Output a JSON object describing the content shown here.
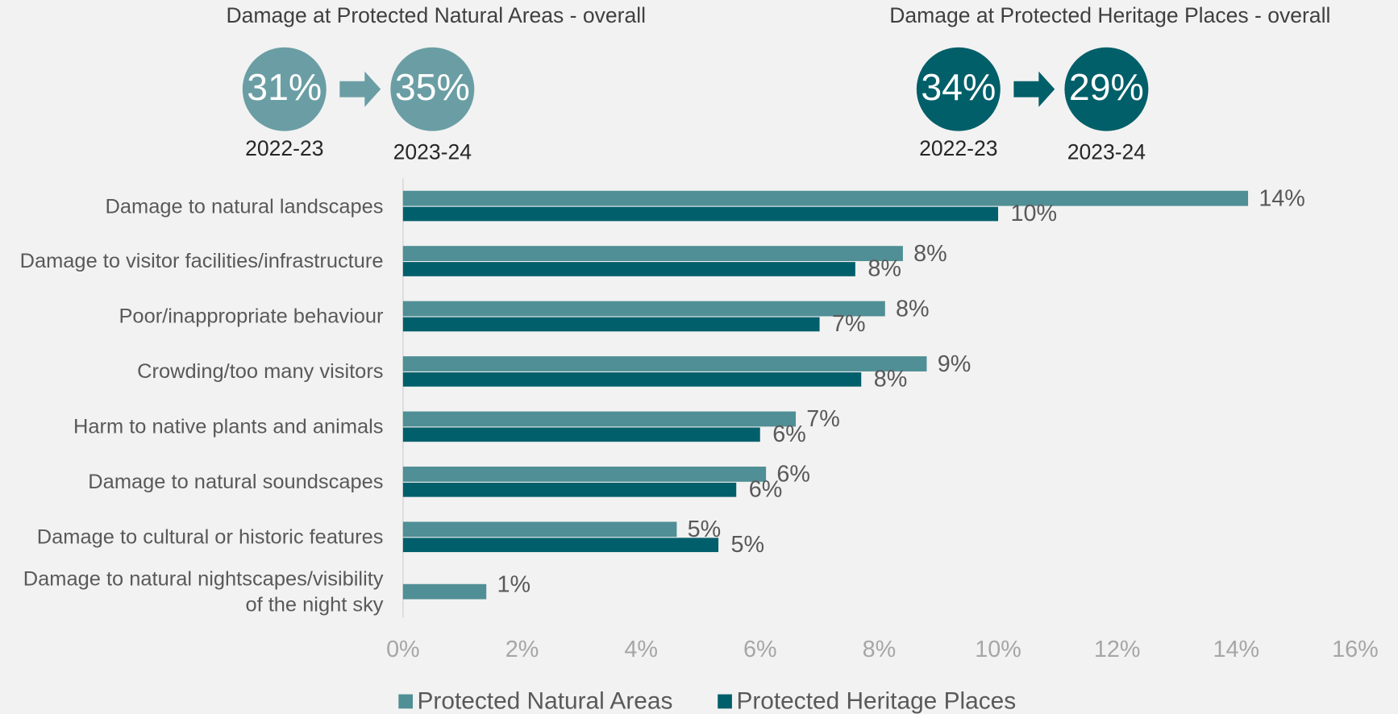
{
  "summaries": [
    {
      "title": "Damage at Protected Natural Areas - overall",
      "values": [
        31,
        35
      ],
      "value_labels": [
        "31%",
        "35%"
      ],
      "periods": [
        "2022-23",
        "2023-24"
      ],
      "color": "#6a9ea4"
    },
    {
      "title": "Damage at Protected Heritage Places - overall",
      "values": [
        34,
        29
      ],
      "value_labels": [
        "34%",
        "29%"
      ],
      "periods": [
        "2022-23",
        "2023-24"
      ],
      "color": "#005f69"
    }
  ],
  "chart_data": {
    "type": "barh",
    "categories": [
      "Damage to natural landscapes",
      "Damage to visitor facilities/infrastructure",
      "Poor/inappropriate behaviour",
      "Crowding/too many visitors",
      "Harm to native plants and animals",
      "Damage to natural soundscapes",
      "Damage to cultural or historic features",
      "Damage to natural nightscapes/visibility of the night sky"
    ],
    "series": [
      {
        "name": "Protected Natural Areas",
        "color": "#4f8f95",
        "values": [
          14.2,
          8.4,
          8.1,
          8.8,
          6.6,
          6.1,
          4.6,
          1.4
        ],
        "value_labels": [
          "14%",
          "8%",
          "8%",
          "9%",
          "7%",
          "6%",
          "5%",
          "1%"
        ]
      },
      {
        "name": "Protected Heritage Places",
        "color": "#005f6b",
        "values": [
          10.0,
          7.6,
          7.0,
          7.7,
          6.0,
          5.6,
          5.3,
          null
        ],
        "value_labels": [
          "10%",
          "8%",
          "7%",
          "8%",
          "6%",
          "6%",
          "5%",
          null
        ]
      }
    ],
    "xlim": [
      0,
      16
    ],
    "xticks": [
      {
        "value": 0,
        "label": "0%"
      },
      {
        "value": 2,
        "label": "2%"
      },
      {
        "value": 4,
        "label": "4%"
      },
      {
        "value": 6,
        "label": "6%"
      },
      {
        "value": 8,
        "label": "8%"
      },
      {
        "value": 10,
        "label": "10%"
      },
      {
        "value": 12,
        "label": "12%"
      },
      {
        "value": 14,
        "label": "14%"
      },
      {
        "value": 16,
        "label": "16%"
      }
    ],
    "legend": "bottom"
  }
}
